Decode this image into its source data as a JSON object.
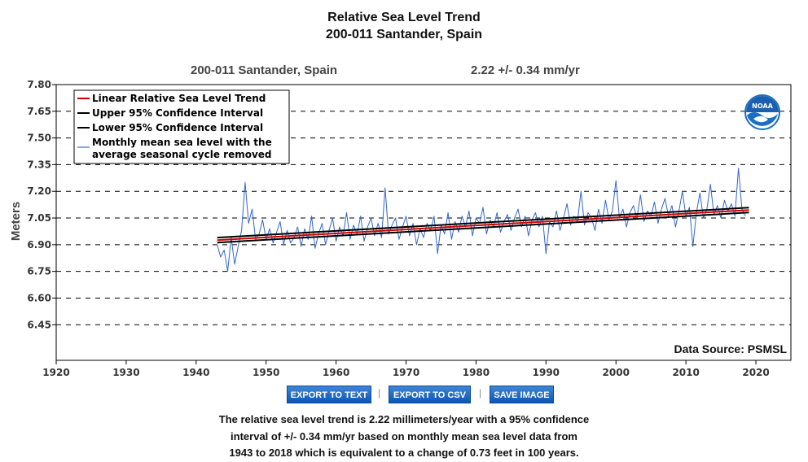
{
  "header": {
    "title_line1": "Relative Sea Level Trend",
    "title_line2": "200-011 Santander, Spain",
    "station": "200-011 Santander, Spain",
    "rate": "2.22 +/-  0.34 mm/yr"
  },
  "buttons": {
    "export_text": "EXPORT TO TEXT",
    "export_csv": "EXPORT TO CSV",
    "save_image": "SAVE IMAGE",
    "separator": "|"
  },
  "summary": {
    "line1": "The relative sea level trend is 2.22 millimeters/year with a 95% confidence",
    "line2": "interval of +/- 0.34 mm/yr based on monthly mean sea level data from",
    "line3": "1943 to 2018 which is equivalent to a change of 0.73 feet in 100 years."
  },
  "colors": {
    "trend": "#cc0000",
    "confidence": "#000000",
    "monthly": "#3366cc",
    "noaa_blue": "#1a6fc4"
  },
  "chart_data": {
    "type": "line",
    "ylabel": "Meters",
    "data_source": "Data Source: PSMSL",
    "xlim": [
      1920,
      2025
    ],
    "ylim": [
      6.25,
      7.8
    ],
    "x_ticks": [
      1920,
      1930,
      1940,
      1950,
      1960,
      1970,
      1980,
      1990,
      2000,
      2010,
      2020
    ],
    "y_ticks": [
      "7.80",
      "7.65",
      "7.50",
      "7.35",
      "7.20",
      "7.05",
      "6.90",
      "6.75",
      "6.60",
      "6.45"
    ],
    "grid": "horizontal dashed",
    "legend_position": "top-left",
    "logo": "NOAA",
    "legend": [
      "Linear Relative Sea Level Trend",
      "Upper 95% Confidence Interval",
      "Lower 95% Confidence Interval",
      "Monthly mean sea level with the",
      "average seasonal cycle removed"
    ],
    "series": [
      {
        "name": "Linear Relative Sea Level Trend",
        "kind": "trend",
        "x": [
          1943.0,
          2019.0
        ],
        "y": [
          6.926,
          7.095
        ]
      },
      {
        "name": "Upper 95% Confidence Interval",
        "kind": "upper",
        "x": [
          1943.0,
          2019.0
        ],
        "y": [
          6.94,
          7.108
        ]
      },
      {
        "name": "Lower 95% Confidence Interval",
        "kind": "lower",
        "x": [
          1943.0,
          2019.0
        ],
        "y": [
          6.912,
          7.081
        ]
      },
      {
        "name": "Monthly mean sea level with the average seasonal cycle removed",
        "kind": "monthly",
        "x": [
          1943.0,
          1943.5,
          1944.0,
          1944.5,
          1945.0,
          1945.5,
          1946.0,
          1946.5,
          1947.0,
          1947.5,
          1948.0,
          1948.5,
          1949.0,
          1949.5,
          1950.0,
          1950.5,
          1951.0,
          1951.5,
          1952.0,
          1952.5,
          1953.0,
          1953.5,
          1954.0,
          1954.5,
          1955.0,
          1955.5,
          1956.0,
          1956.5,
          1957.0,
          1957.5,
          1958.0,
          1958.5,
          1959.0,
          1959.5,
          1960.0,
          1960.5,
          1961.0,
          1961.5,
          1962.0,
          1962.5,
          1963.0,
          1963.5,
          1964.0,
          1964.5,
          1965.0,
          1965.5,
          1966.0,
          1966.5,
          1967.0,
          1967.5,
          1968.0,
          1968.5,
          1969.0,
          1969.5,
          1970.0,
          1970.5,
          1971.0,
          1971.5,
          1972.0,
          1972.5,
          1973.0,
          1973.5,
          1974.0,
          1974.5,
          1975.0,
          1975.5,
          1976.0,
          1976.5,
          1977.0,
          1977.5,
          1978.0,
          1978.5,
          1979.0,
          1979.5,
          1980.0,
          1980.5,
          1981.0,
          1981.5,
          1982.0,
          1982.5,
          1983.0,
          1983.5,
          1984.0,
          1984.5,
          1985.0,
          1985.5,
          1986.0,
          1986.5,
          1987.0,
          1987.5,
          1988.0,
          1988.5,
          1989.0,
          1989.5,
          1990.0,
          1990.5,
          1991.0,
          1991.5,
          1992.0,
          1992.5,
          1993.0,
          1993.5,
          1994.0,
          1994.5,
          1995.0,
          1995.5,
          1996.0,
          1996.5,
          1997.0,
          1997.5,
          1998.0,
          1998.5,
          1999.0,
          1999.5,
          2000.0,
          2000.5,
          2001.0,
          2001.5,
          2002.0,
          2002.5,
          2003.0,
          2003.5,
          2004.0,
          2004.5,
          2005.0,
          2005.5,
          2006.0,
          2006.5,
          2007.0,
          2007.5,
          2008.0,
          2008.5,
          2009.0,
          2009.5,
          2010.0,
          2010.5,
          2011.0,
          2011.5,
          2012.0,
          2012.5,
          2013.0,
          2013.5,
          2014.0,
          2014.5,
          2015.0,
          2015.5,
          2016.0,
          2016.5,
          2017.0,
          2017.5,
          2018.0,
          2018.5
        ],
        "y": [
          6.9,
          6.83,
          6.87,
          6.75,
          6.94,
          6.79,
          6.89,
          6.98,
          7.25,
          7.02,
          7.1,
          6.93,
          6.96,
          7.04,
          6.93,
          6.99,
          6.91,
          6.97,
          7.03,
          6.9,
          6.98,
          6.91,
          6.94,
          7.0,
          6.89,
          6.99,
          6.93,
          7.06,
          6.88,
          6.96,
          7.02,
          6.9,
          6.98,
          7.05,
          6.92,
          7.0,
          6.95,
          7.08,
          6.93,
          7.01,
          6.96,
          7.06,
          6.92,
          7.0,
          7.05,
          6.95,
          7.02,
          6.94,
          7.22,
          6.96,
          7.01,
          7.05,
          6.93,
          7.0,
          7.06,
          6.95,
          7.02,
          6.9,
          6.99,
          6.94,
          7.02,
          6.98,
          7.06,
          6.85,
          7.01,
          6.96,
          7.08,
          6.93,
          7.03,
          6.97,
          7.06,
          7.0,
          7.09,
          6.95,
          7.05,
          7.02,
          7.11,
          6.96,
          7.04,
          7.0,
          7.08,
          6.97,
          7.03,
          7.07,
          6.98,
          7.05,
          7.1,
          7.0,
          7.06,
          6.95,
          7.04,
          7.08,
          7.0,
          7.06,
          6.85,
          7.03,
          7.0,
          7.09,
          6.98,
          7.05,
          7.13,
          7.01,
          7.06,
          7.03,
          7.2,
          7.01,
          7.08,
          7.05,
          6.98,
          7.1,
          7.02,
          7.15,
          7.04,
          7.09,
          7.26,
          7.05,
          7.1,
          7.0,
          7.08,
          7.12,
          7.05,
          7.18,
          7.03,
          7.09,
          7.06,
          7.14,
          7.02,
          7.1,
          7.16,
          7.06,
          7.12,
          7.0,
          7.09,
          7.2,
          7.06,
          7.11,
          6.89,
          7.08,
          7.19,
          7.05,
          7.1,
          7.24,
          7.07,
          7.12,
          7.05,
          7.15,
          7.09,
          7.13,
          7.06,
          7.33,
          7.1,
          7.06
        ]
      }
    ]
  }
}
